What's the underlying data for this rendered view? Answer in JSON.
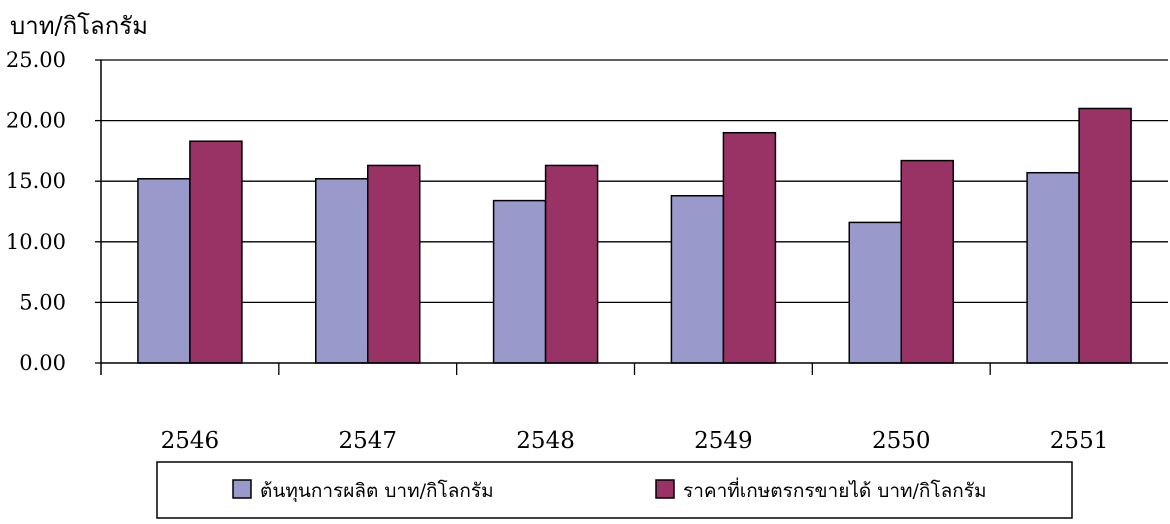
{
  "chart_data": {
    "type": "bar",
    "title": "",
    "xlabel": "",
    "ylabel": "บาท/กิโลกรัม",
    "ylim": [
      0,
      25
    ],
    "y_ticks": [
      "0.00",
      "5.00",
      "10.00",
      "15.00",
      "20.00",
      "25.00"
    ],
    "categories": [
      "2546",
      "2547",
      "2548",
      "2549",
      "2550",
      "2551"
    ],
    "grid": "horizontal",
    "legend_position": "bottom",
    "series": [
      {
        "name": "ต้นทุนการผลิต บาท/กิโลกรัม",
        "color": "#9999cc",
        "values": [
          15.2,
          15.2,
          13.4,
          13.8,
          11.6,
          15.7
        ]
      },
      {
        "name": "ราคาที่เกษตรกรขายได้ บาท/กิโลกรัม",
        "color": "#993366",
        "values": [
          18.3,
          16.3,
          16.3,
          19.0,
          16.7,
          21.0
        ]
      }
    ]
  }
}
